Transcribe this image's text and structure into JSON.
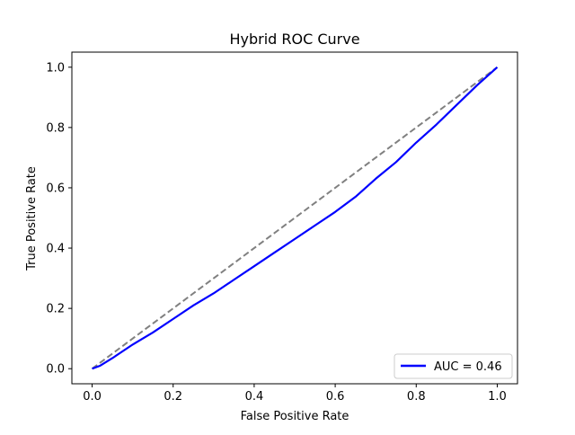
{
  "chart_data": {
    "type": "line",
    "title": "Hybrid ROC Curve",
    "xlabel": "False Positive Rate",
    "ylabel": "True Positive Rate",
    "xlim": [
      -0.05,
      1.05
    ],
    "ylim": [
      -0.05,
      1.05
    ],
    "xticks": [
      "0.0",
      "0.2",
      "0.4",
      "0.6",
      "0.8",
      "1.0"
    ],
    "yticks": [
      "0.0",
      "0.2",
      "0.4",
      "0.6",
      "0.8",
      "1.0"
    ],
    "grid": false,
    "legend_position": "lower-right",
    "series": [
      {
        "name": "AUC = 0.46",
        "color": "#0000ff",
        "style": "solid",
        "x": [
          0.0,
          0.02,
          0.05,
          0.1,
          0.15,
          0.2,
          0.25,
          0.3,
          0.35,
          0.4,
          0.45,
          0.5,
          0.55,
          0.6,
          0.65,
          0.7,
          0.75,
          0.8,
          0.85,
          0.9,
          0.95,
          1.0
        ],
        "y": [
          0.0,
          0.01,
          0.035,
          0.08,
          0.12,
          0.165,
          0.21,
          0.25,
          0.295,
          0.34,
          0.385,
          0.43,
          0.475,
          0.52,
          0.57,
          0.63,
          0.685,
          0.75,
          0.81,
          0.875,
          0.94,
          1.0
        ]
      },
      {
        "name": "",
        "color": "#808080",
        "style": "dashed",
        "x": [
          0.0,
          1.0
        ],
        "y": [
          0.0,
          1.0
        ]
      }
    ],
    "legend": [
      {
        "label": "AUC = 0.46",
        "color": "#0000ff"
      }
    ]
  }
}
